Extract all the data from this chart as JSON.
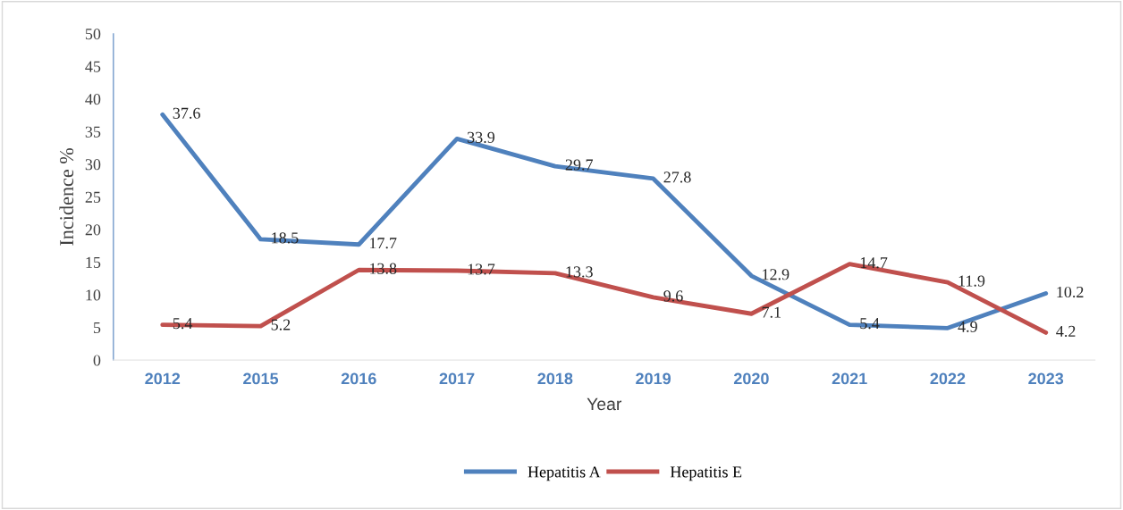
{
  "chart_data": {
    "type": "line",
    "xlabel": "Year",
    "ylabel": "Incidence %",
    "categories": [
      "2012",
      "2015",
      "2016",
      "2017",
      "2018",
      "2019",
      "2020",
      "2021",
      "2022",
      "2023"
    ],
    "series": [
      {
        "name": "Hepatitis A",
        "color": "#4f81bd",
        "values": [
          37.6,
          18.5,
          17.7,
          33.9,
          29.7,
          27.8,
          12.9,
          5.4,
          4.9,
          10.2
        ]
      },
      {
        "name": "Hepatitis E",
        "color": "#c0504d",
        "values": [
          5.4,
          5.2,
          13.8,
          13.7,
          13.3,
          9.6,
          7.1,
          14.7,
          11.9,
          4.2
        ]
      }
    ],
    "ylim": [
      0,
      50
    ],
    "yticks": [
      0,
      5,
      10,
      15,
      20,
      25,
      30,
      35,
      40,
      45,
      50
    ],
    "data_labels": true,
    "grid": false,
    "legend": "bottom",
    "marker": "none",
    "line_style": "solid"
  }
}
